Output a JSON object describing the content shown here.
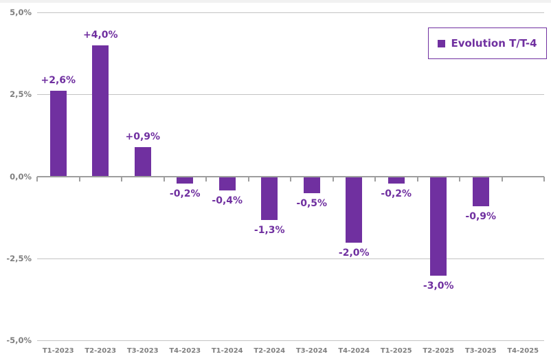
{
  "legend": {
    "label": "Evolution T/T-4"
  },
  "chart_data": {
    "type": "bar",
    "title": "",
    "xlabel": "",
    "ylabel": "",
    "categories": [
      "T1-2023",
      "T2-2023",
      "T3-2023",
      "T4-2023",
      "T1-2024",
      "T2-2024",
      "T3-2024",
      "T4-2024",
      "T1-2025",
      "T2-2025",
      "T3-2025",
      "T4-2025"
    ],
    "series": [
      {
        "name": "Evolution T/T-4",
        "values": [
          2.6,
          4.0,
          0.9,
          -0.2,
          -0.4,
          -1.3,
          -0.5,
          -2.0,
          -0.2,
          -3.0,
          -0.9,
          null
        ],
        "data_labels": [
          "+2,6%",
          "+4,0%",
          "+0,9%",
          "-0,2%",
          "-0,4%",
          "-1,3%",
          "-0,5%",
          "-2,0%",
          "-0,2%",
          "-3,0%",
          "-0,9%",
          ""
        ]
      }
    ],
    "ylim": [
      -5,
      5
    ],
    "y_ticks": [
      {
        "value": 5,
        "label": "5,0%"
      },
      {
        "value": 2.5,
        "label": "2,5%"
      },
      {
        "value": 0,
        "label": "0,0%"
      },
      {
        "value": -2.5,
        "label": "-2,5%"
      },
      {
        "value": -5,
        "label": "-5,0%"
      }
    ],
    "grid": true,
    "legend_position": "top-right",
    "colors": {
      "bar": "#7030A0",
      "data_label": "#7030A0",
      "axis_text": "#7F7F7F",
      "gridline": "#C3C3C3",
      "zero_line": "#9E9E9E",
      "legend_border": "#7030A0",
      "legend_text": "#7030A0",
      "top_strip": "#F1F1F1"
    }
  }
}
